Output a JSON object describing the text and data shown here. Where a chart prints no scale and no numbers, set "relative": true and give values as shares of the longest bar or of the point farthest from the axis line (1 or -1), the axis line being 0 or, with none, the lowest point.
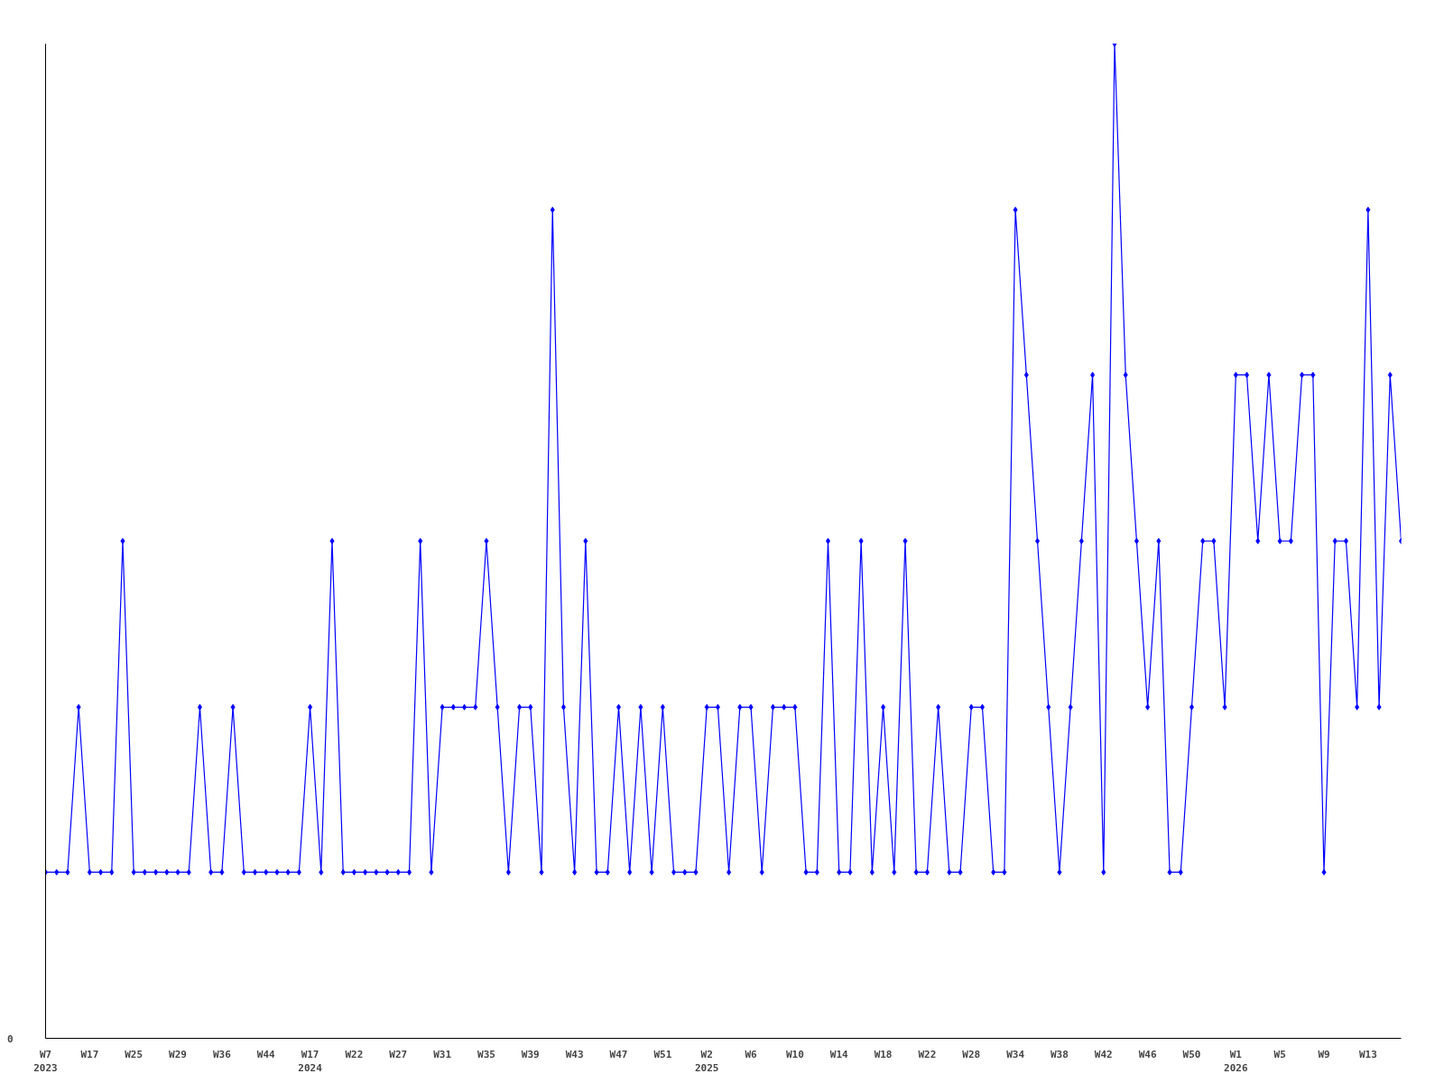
{
  "chart_data": {
    "type": "line",
    "relative": true,
    "marker": "diamond",
    "line_style": "solid",
    "grid": false,
    "categories": [
      "W7\n2023",
      null,
      null,
      null,
      "W17",
      null,
      null,
      null,
      "W25",
      null,
      null,
      null,
      "W29",
      null,
      null,
      null,
      "W36",
      null,
      null,
      null,
      "W44",
      null,
      null,
      null,
      "W17\n2024",
      null,
      null,
      null,
      "W22",
      null,
      null,
      null,
      "W27",
      null,
      null,
      null,
      "W31",
      null,
      null,
      null,
      "W35",
      null,
      null,
      null,
      "W39",
      null,
      null,
      null,
      "W43",
      null,
      null,
      null,
      "W47",
      null,
      null,
      null,
      "W51",
      null,
      null,
      null,
      "W2\n2025",
      null,
      null,
      null,
      "W6",
      null,
      null,
      null,
      "W10",
      null,
      null,
      null,
      "W14",
      null,
      null,
      null,
      "W18",
      null,
      null,
      null,
      "W22",
      null,
      null,
      null,
      "W28",
      null,
      null,
      null,
      "W34",
      null,
      null,
      null,
      "W38",
      null,
      null,
      null,
      "W42",
      null,
      null,
      null,
      "W46",
      null,
      null,
      null,
      "W50",
      null,
      null,
      null,
      "W1\n2026",
      null,
      null,
      null,
      "W5",
      null,
      null,
      null,
      "W9",
      null,
      null,
      null,
      "W13",
      null,
      null,
      null
    ],
    "annotations": [
      "0"
    ],
    "series": [
      {
        "color": "#0000ff",
        "values": [
          0.167,
          0.167,
          0.167,
          0.333,
          0.167,
          0.167,
          0.167,
          0.5,
          0.167,
          0.167,
          0.167,
          0.167,
          0.167,
          0.167,
          0.333,
          0.167,
          0.167,
          0.333,
          0.167,
          0.167,
          0.167,
          0.167,
          0.167,
          0.167,
          0.333,
          0.167,
          0.5,
          0.167,
          0.167,
          0.167,
          0.167,
          0.167,
          0.167,
          0.167,
          0.5,
          0.167,
          0.333,
          0.333,
          0.333,
          0.333,
          0.5,
          0.333,
          0.167,
          0.333,
          0.333,
          0.167,
          0.833,
          0.333,
          0.167,
          0.5,
          0.167,
          0.167,
          0.333,
          0.167,
          0.333,
          0.167,
          0.333,
          0.167,
          0.167,
          0.167,
          0.333,
          0.333,
          0.167,
          0.333,
          0.333,
          0.167,
          0.333,
          0.333,
          0.333,
          0.167,
          0.167,
          0.5,
          0.167,
          0.167,
          0.5,
          0.167,
          0.333,
          0.167,
          0.5,
          0.167,
          0.167,
          0.333,
          0.167,
          0.167,
          0.333,
          0.333,
          0.167,
          0.167,
          0.833,
          0.667,
          0.5,
          0.333,
          0.167,
          0.333,
          0.5,
          0.667,
          0.167,
          1,
          0.667,
          0.5,
          0.333,
          0.5,
          0.167,
          0.167,
          0.333,
          0.5,
          0.5,
          0.333,
          0.667,
          0.667,
          0.5,
          0.667,
          0.5,
          0.5,
          0.667,
          0.667,
          0.167,
          0.5,
          0.5,
          0.333,
          0.833,
          0.333,
          0.667,
          0.5
        ]
      }
    ]
  }
}
